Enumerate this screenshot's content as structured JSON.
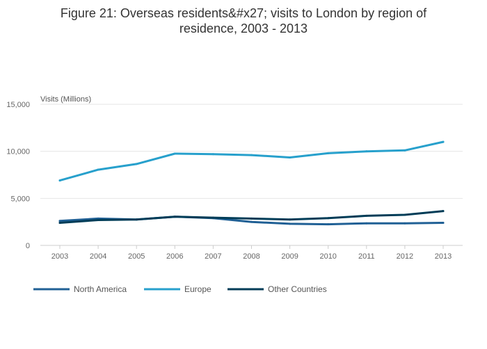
{
  "title": "Figure 21: Overseas residents&#x27; visits to London by region of residence, 2003 - 2013",
  "chart_data": {
    "type": "line",
    "title": "Figure 21: Overseas residents&#x27; visits to London by region of residence, 2003 - 2013",
    "xlabel": "",
    "ylabel": "Visits (Millions)",
    "categories": [
      "2003",
      "2004",
      "2005",
      "2006",
      "2007",
      "2008",
      "2009",
      "2010",
      "2011",
      "2012",
      "2013"
    ],
    "ylim": [
      0,
      15000
    ],
    "yticks": [
      0,
      5000,
      10000,
      15000
    ],
    "ytick_labels": [
      "0",
      "5,000",
      "10,000",
      "15,000"
    ],
    "grid": true,
    "legend_position": "bottom-left",
    "series": [
      {
        "name": "North America",
        "color": "#206095",
        "values": [
          2600,
          2850,
          2750,
          3050,
          2900,
          2500,
          2300,
          2250,
          2350,
          2350,
          2400
        ]
      },
      {
        "name": "Europe",
        "color": "#27a0cc",
        "values": [
          6900,
          8050,
          8650,
          9750,
          9700,
          9600,
          9350,
          9800,
          10000,
          10100,
          11000
        ]
      },
      {
        "name": "Other Countries",
        "color": "#003c57",
        "values": [
          2400,
          2700,
          2750,
          3050,
          2950,
          2850,
          2750,
          2900,
          3150,
          3250,
          3650
        ]
      }
    ]
  }
}
